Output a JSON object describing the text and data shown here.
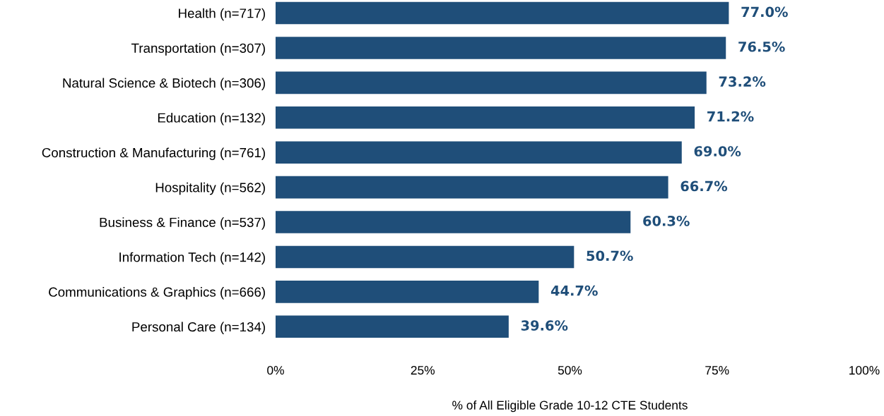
{
  "chart_data": {
    "type": "bar",
    "orientation": "horizontal",
    "xlabel": "% of All Eligible Grade 10-12 CTE Students",
    "categories": [
      "Health (n=717)",
      "Transportation (n=307)",
      "Natural Science & Biotech (n=306)",
      "Education (n=132)",
      "Construction & Manufacturing (n=761)",
      "Hospitality (n=562)",
      "Business & Finance (n=537)",
      "Information Tech (n=142)",
      "Communications & Graphics (n=666)",
      "Personal Care (n=134)"
    ],
    "values": [
      77.0,
      76.5,
      73.2,
      71.2,
      69.0,
      66.7,
      60.3,
      50.7,
      44.7,
      39.6
    ],
    "value_labels": [
      "77.0%",
      "76.5%",
      "73.2%",
      "71.2%",
      "69.0%",
      "66.7%",
      "60.3%",
      "50.7%",
      "44.7%",
      "39.6%"
    ],
    "color": "#1f4e79",
    "xlim": [
      0,
      100
    ],
    "xticks": [
      {
        "value": 0,
        "label": "0%"
      },
      {
        "value": 25,
        "label": "25%"
      },
      {
        "value": 50,
        "label": "50%"
      },
      {
        "value": 75,
        "label": "75%"
      },
      {
        "value": 100,
        "label": "100%"
      }
    ],
    "grid": false,
    "legend": false
  }
}
